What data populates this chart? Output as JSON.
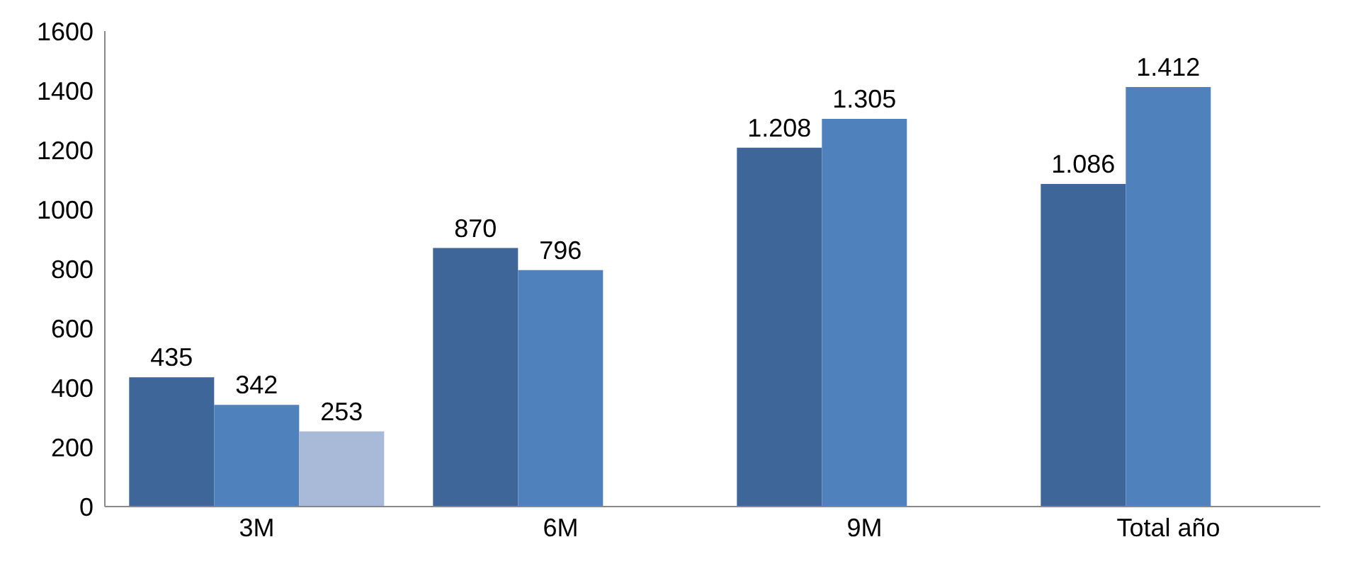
{
  "chart_data": {
    "type": "bar",
    "categories": [
      "3M",
      "6M",
      "9M",
      "Total año"
    ],
    "series": [
      {
        "color": "#3f6699",
        "values": [
          435,
          870,
          1208,
          1086
        ],
        "value_labels": [
          "435",
          "870",
          "1.208",
          "1.086"
        ]
      },
      {
        "color": "#4f81bd",
        "values": [
          342,
          796,
          1305,
          1412
        ],
        "value_labels": [
          "342",
          "796",
          "1.305",
          "1.412"
        ]
      },
      {
        "color": "#a9b9d8",
        "values": [
          253,
          null,
          null,
          null
        ],
        "value_labels": [
          "253",
          null,
          null,
          null
        ]
      }
    ],
    "ylim": [
      0,
      1600
    ],
    "yticks": [
      0,
      200,
      400,
      600,
      800,
      1000,
      1200,
      1400,
      1600
    ],
    "grid": false,
    "legend": false
  }
}
